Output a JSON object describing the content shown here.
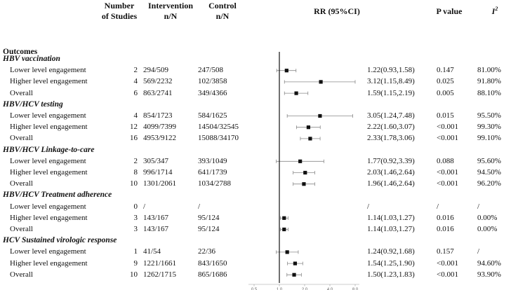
{
  "headers": {
    "studies": "Number\nof Studies",
    "intervention": "Intervention\nn/N",
    "control": "Control\nn/N",
    "rr": "RR (95%CI)",
    "pvalue": "P value",
    "i2": "I",
    "i2_sup": "2"
  },
  "outcomes_label": "Outcomes",
  "chart_data": {
    "type": "forest",
    "x_axis": {
      "scale": "log",
      "ticks": [
        0.5,
        1.0,
        2.0,
        4.0,
        8.0
      ],
      "tick_labels": [
        "0.5",
        "1.0",
        "2.0",
        "4.0",
        "8.0"
      ],
      "reference_line": 1.0
    },
    "groups": [
      {
        "title": "HBV vaccination",
        "rows": [
          {
            "label": "Lower level engagement",
            "studies": "2",
            "intervention": "294/509",
            "control": "247/508",
            "rr_text": "1.22(0.93,1.58)",
            "p": "0.147",
            "i2": "81.00%",
            "rr": 1.22,
            "lo": 0.93,
            "hi": 1.58
          },
          {
            "label": "Higher level engagement",
            "studies": "4",
            "intervention": "569/2232",
            "control": "102/3858",
            "rr_text": "3.12(1.15,8.49)",
            "p": "0.025",
            "i2": "91.80%",
            "rr": 3.12,
            "lo": 1.15,
            "hi": 8.49
          },
          {
            "label": "Overall",
            "studies": "6",
            "intervention": "863/2741",
            "control": "349/4366",
            "rr_text": "1.59(1.15,2.19)",
            "p": "0.005",
            "i2": "88.10%",
            "rr": 1.59,
            "lo": 1.15,
            "hi": 2.19
          }
        ]
      },
      {
        "title": "HBV/HCV testing",
        "rows": [
          {
            "label": "Lower level engagement",
            "studies": "4",
            "intervention": "854/1723",
            "control": "584/1625",
            "rr_text": "3.05(1.24,7.48)",
            "p": "0.015",
            "i2": "95.50%",
            "rr": 3.05,
            "lo": 1.24,
            "hi": 7.48
          },
          {
            "label": "Higher level engagement",
            "studies": "12",
            "intervention": "4099/7399",
            "control": "14504/32545",
            "rr_text": "2.22(1.60,3.07)",
            "p": "<0.001",
            "i2": "99.30%",
            "rr": 2.22,
            "lo": 1.6,
            "hi": 3.07
          },
          {
            "label": "Overall",
            "studies": "16",
            "intervention": "4953/9122",
            "control": "15088/34170",
            "rr_text": "2.33(1.78,3.06)",
            "p": "<0.001",
            "i2": "99.10%",
            "rr": 2.33,
            "lo": 1.78,
            "hi": 3.06
          }
        ]
      },
      {
        "title": "HBV/HCV Linkage-to-care",
        "rows": [
          {
            "label": "Lower level engagement",
            "studies": "2",
            "intervention": "305/347",
            "control": "393/1049",
            "rr_text": "1.77(0.92,3.39)",
            "p": "0.088",
            "i2": "95.60%",
            "rr": 1.77,
            "lo": 0.92,
            "hi": 3.39
          },
          {
            "label": "Higher level engagement",
            "studies": "8",
            "intervention": "996/1714",
            "control": "641/1739",
            "rr_text": "2.03(1.46,2.64)",
            "p": "<0.001",
            "i2": "94.50%",
            "rr": 2.03,
            "lo": 1.46,
            "hi": 2.64
          },
          {
            "label": "Overall",
            "studies": "10",
            "intervention": "1301/2061",
            "control": "1034/2788",
            "rr_text": "1.96(1.46,2.64)",
            "p": "<0.001",
            "i2": "96.20%",
            "rr": 1.96,
            "lo": 1.46,
            "hi": 2.64
          }
        ]
      },
      {
        "title": "HBV/HCV Treatment adherence",
        "rows": [
          {
            "label": "Lower level engagement",
            "studies": "0",
            "intervention": "/",
            "control": "/",
            "rr_text": "/",
            "p": "/",
            "i2": "/",
            "rr": null,
            "lo": null,
            "hi": null
          },
          {
            "label": "Higher level engagement",
            "studies": "3",
            "intervention": "143/167",
            "control": "95/124",
            "rr_text": "1.14(1.03,1.27)",
            "p": "0.016",
            "i2": "0.00%",
            "rr": 1.14,
            "lo": 1.03,
            "hi": 1.27
          },
          {
            "label": "Overall",
            "studies": "3",
            "intervention": "143/167",
            "control": "95/124",
            "rr_text": "1.14(1.03,1.27)",
            "p": "0.016",
            "i2": "0.00%",
            "rr": 1.14,
            "lo": 1.03,
            "hi": 1.27
          }
        ]
      },
      {
        "title": "HCV Sustained virologic response",
        "rows": [
          {
            "label": "Lower level engagement",
            "studies": "1",
            "intervention": "41/54",
            "control": "22/36",
            "rr_text": "1.24(0.92,1.68)",
            "p": "0.157",
            "i2": "/",
            "rr": 1.24,
            "lo": 0.92,
            "hi": 1.68
          },
          {
            "label": "Higher level engagement",
            "studies": "9",
            "intervention": "1221/1661",
            "control": "843/1650",
            "rr_text": "1.54(1.25,1.90)",
            "p": "<0.001",
            "i2": "94.60%",
            "rr": 1.54,
            "lo": 1.25,
            "hi": 1.9
          },
          {
            "label": "Overall",
            "studies": "10",
            "intervention": "1262/1715",
            "control": "865/1686",
            "rr_text": "1.50(1.23,1.83)",
            "p": "<0.001",
            "i2": "93.90%",
            "rr": 1.5,
            "lo": 1.23,
            "hi": 1.83
          }
        ]
      }
    ]
  }
}
